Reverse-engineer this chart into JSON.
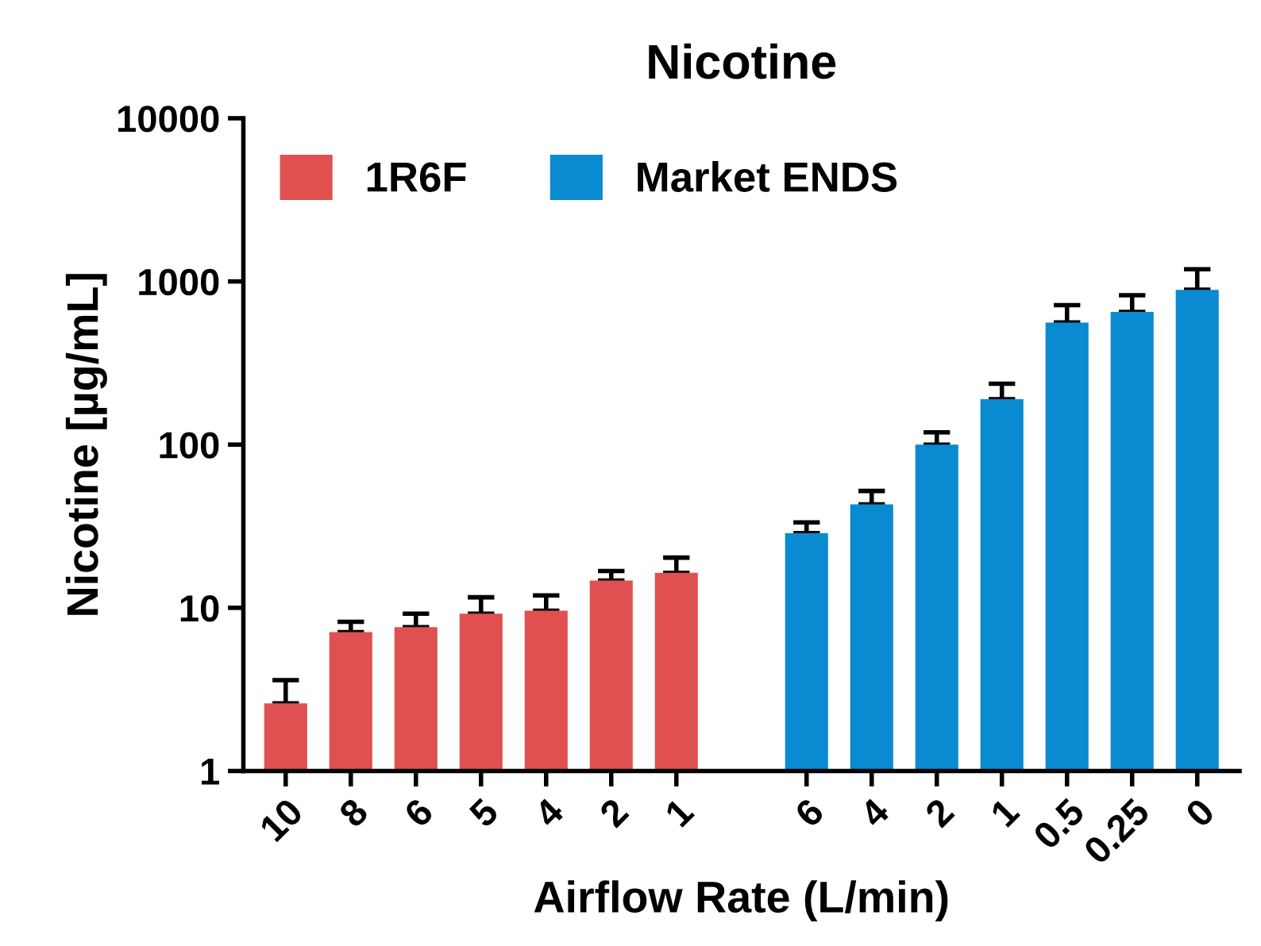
{
  "chart_data": {
    "type": "bar",
    "title": "Nicotine",
    "xlabel": "Airflow Rate (L/min)",
    "ylabel": "Nicotine [µg/mL]",
    "categories": [
      "10",
      "8",
      "6",
      "5",
      "4",
      "2",
      "1",
      null,
      "6",
      "4",
      "2",
      "1",
      "0.5",
      "0.25",
      "0"
    ],
    "series": [
      {
        "name": "1R6F",
        "color": "#e05050",
        "values": [
          2.6,
          7.1,
          7.6,
          9.2,
          9.6,
          14.7,
          16.4,
          null,
          null,
          null,
          null,
          null,
          null,
          null,
          null
        ],
        "errors": [
          [
            2.6,
            3.6
          ],
          [
            7.1,
            8.2
          ],
          [
            7.6,
            9.2
          ],
          [
            9.2,
            11.6
          ],
          [
            9.6,
            11.9
          ],
          [
            14.7,
            16.8
          ],
          [
            16.4,
            20.3
          ],
          null,
          null,
          null,
          null,
          null,
          null,
          null,
          null
        ]
      },
      {
        "name": "Market ENDS",
        "color": "#0a8ad0",
        "values": [
          null,
          null,
          null,
          null,
          null,
          null,
          null,
          null,
          28.7,
          43,
          100,
          190,
          560,
          650,
          889
        ],
        "errors": [
          null,
          null,
          null,
          null,
          null,
          null,
          null,
          null,
          [
            28.7,
            33.4
          ],
          [
            43,
            52
          ],
          [
            100,
            119
          ],
          [
            190,
            236
          ],
          [
            560,
            716
          ],
          [
            650,
            824
          ],
          [
            889,
            1189
          ]
        ]
      }
    ],
    "log": "y",
    "ylim": [
      1,
      10000
    ],
    "yticks": [
      1,
      10,
      100,
      1000,
      10000
    ],
    "grid": false,
    "legend": "top left"
  }
}
